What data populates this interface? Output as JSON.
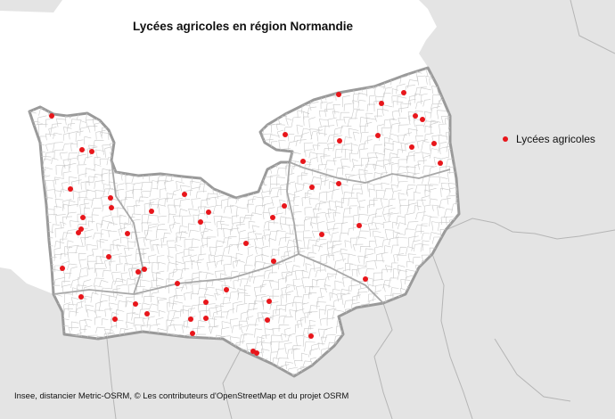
{
  "title": "Lycées agricoles en région Normandie",
  "legend": {
    "label": "Lycées agricoles",
    "color": "#e8161b"
  },
  "source": "Insee, distancier Metric-OSRM, © Les contributeurs d'OpenStreetMap et du projet OSRM",
  "colors": {
    "land_outside": "#e4e4e4",
    "sea": "#ffffff",
    "region_fill": "#ffffff",
    "region_border": "#9a9a9a",
    "dept_border": "#a8a8a8",
    "commune_lines": "#c9c9c9",
    "point": "#e8161b"
  },
  "points_count": 47
}
